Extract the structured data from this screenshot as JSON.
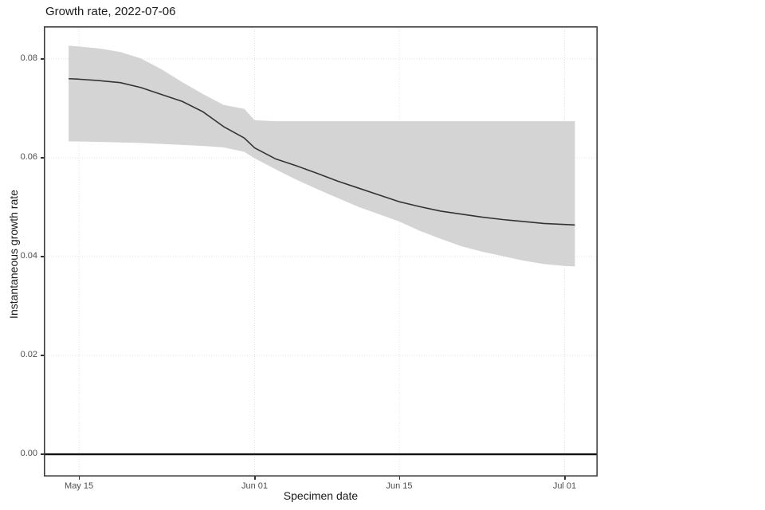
{
  "chart_data": {
    "type": "line",
    "title": "Growth rate, 2022-07-06",
    "xlabel": "Specimen date",
    "ylabel": "Instantaneous growth rate",
    "grid": "dotted-major",
    "legend": "none",
    "x_axis": {
      "range_days": [
        -3.4,
        50.2
      ],
      "ticks": [
        {
          "label": "May 15",
          "day": 0
        },
        {
          "label": "Jun 01",
          "day": 17
        },
        {
          "label": "Jun 15",
          "day": 31
        },
        {
          "label": "Jul 01",
          "day": 47
        }
      ]
    },
    "y_axis": {
      "range": [
        -0.0045,
        0.0866
      ],
      "ticks": [
        {
          "label": "0.00",
          "value": 0.0
        },
        {
          "label": "0.02",
          "value": 0.02
        },
        {
          "label": "0.04",
          "value": 0.04
        },
        {
          "label": "0.06",
          "value": 0.06
        },
        {
          "label": "0.08",
          "value": 0.08
        }
      ]
    },
    "zero_line": 0.0,
    "points": [
      {
        "date": "2022-05-14",
        "day": -1,
        "value": 0.076,
        "lower": 0.0633,
        "upper": 0.0827
      },
      {
        "date": "2022-05-15",
        "day": 0,
        "value": 0.0759,
        "lower": 0.0633,
        "upper": 0.0825
      },
      {
        "date": "2022-05-17",
        "day": 2,
        "value": 0.0756,
        "lower": 0.0632,
        "upper": 0.0821
      },
      {
        "date": "2022-05-19",
        "day": 4,
        "value": 0.0752,
        "lower": 0.0631,
        "upper": 0.0814
      },
      {
        "date": "2022-05-21",
        "day": 6,
        "value": 0.0742,
        "lower": 0.063,
        "upper": 0.0801
      },
      {
        "date": "2022-05-23",
        "day": 8,
        "value": 0.0728,
        "lower": 0.0628,
        "upper": 0.0779
      },
      {
        "date": "2022-05-25",
        "day": 10,
        "value": 0.0714,
        "lower": 0.0626,
        "upper": 0.0753
      },
      {
        "date": "2022-05-27",
        "day": 12,
        "value": 0.0693,
        "lower": 0.0624,
        "upper": 0.0729
      },
      {
        "date": "2022-05-29",
        "day": 14,
        "value": 0.0663,
        "lower": 0.0621,
        "upper": 0.0707
      },
      {
        "date": "2022-05-31",
        "day": 16,
        "value": 0.064,
        "lower": 0.0612,
        "upper": 0.0699
      },
      {
        "date": "2022-06-01",
        "day": 17,
        "value": 0.062,
        "lower": 0.0599,
        "upper": 0.0676
      },
      {
        "date": "2022-06-03",
        "day": 19,
        "value": 0.0598,
        "lower": 0.0577,
        "upper": 0.0674
      },
      {
        "date": "2022-06-05",
        "day": 21,
        "value": 0.0584,
        "lower": 0.0556,
        "upper": 0.0674
      },
      {
        "date": "2022-06-07",
        "day": 23,
        "value": 0.0569,
        "lower": 0.0537,
        "upper": 0.0674
      },
      {
        "date": "2022-06-09",
        "day": 25,
        "value": 0.0553,
        "lower": 0.0519,
        "upper": 0.0674
      },
      {
        "date": "2022-06-11",
        "day": 27,
        "value": 0.0539,
        "lower": 0.0501,
        "upper": 0.0674
      },
      {
        "date": "2022-06-13",
        "day": 29,
        "value": 0.0525,
        "lower": 0.0486,
        "upper": 0.0674
      },
      {
        "date": "2022-06-15",
        "day": 31,
        "value": 0.0511,
        "lower": 0.0471,
        "upper": 0.0674
      },
      {
        "date": "2022-06-17",
        "day": 33,
        "value": 0.0501,
        "lower": 0.0452,
        "upper": 0.0674
      },
      {
        "date": "2022-06-19",
        "day": 35,
        "value": 0.0492,
        "lower": 0.0436,
        "upper": 0.0674
      },
      {
        "date": "2022-06-21",
        "day": 37,
        "value": 0.0486,
        "lower": 0.0421,
        "upper": 0.0674
      },
      {
        "date": "2022-06-23",
        "day": 39,
        "value": 0.048,
        "lower": 0.041,
        "upper": 0.0674
      },
      {
        "date": "2022-06-25",
        "day": 41,
        "value": 0.0475,
        "lower": 0.0401,
        "upper": 0.0674
      },
      {
        "date": "2022-06-27",
        "day": 43,
        "value": 0.0471,
        "lower": 0.0392,
        "upper": 0.0674
      },
      {
        "date": "2022-06-29",
        "day": 45,
        "value": 0.0467,
        "lower": 0.0385,
        "upper": 0.0674
      },
      {
        "date": "2022-07-01",
        "day": 47,
        "value": 0.0465,
        "lower": 0.0381,
        "upper": 0.0674
      },
      {
        "date": "2022-07-02",
        "day": 48,
        "value": 0.0464,
        "lower": 0.038,
        "upper": 0.0674
      }
    ],
    "colors": {
      "ribbon": "#d4d4d4",
      "line": "#333333",
      "grid": "#e1e1e1",
      "axis_text": "#4d4d4d",
      "title_text": "#1a1a1a",
      "panel_border": "#3c3c3c",
      "zero_line": "#111111"
    }
  }
}
